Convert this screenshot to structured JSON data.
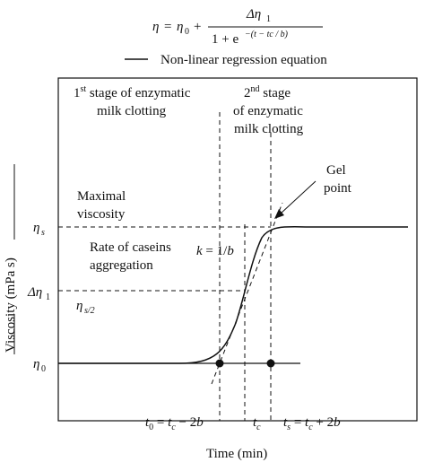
{
  "equation": {
    "lhs": "η",
    "eq": "=",
    "eta0_sym": "η",
    "eta0_sub": "0",
    "plus": "+",
    "numerator": "Δη",
    "numerator_sub": "1",
    "denominator": "1 + e",
    "exponent": "−(t − tc / b)"
  },
  "legend": {
    "label": "Non-linear regression equation"
  },
  "stage1": {
    "line1_num": "1",
    "line1_sup": "st",
    "line1_rest": " stage of enzymatic",
    "line2": "milk clotting"
  },
  "stage2": {
    "line1_num": "2",
    "line1_sup": "nd",
    "line1_rest": " stage",
    "line2": "of enzymatic",
    "line3": "milk clotting"
  },
  "gel_point": {
    "line1": "Gel",
    "line2": "point"
  },
  "maximal_viscosity": {
    "line1": "Maximal",
    "line2": "viscosity"
  },
  "rate": {
    "line1": "Rate of caseins",
    "line2": "aggregation"
  },
  "slope": {
    "k": "k",
    "rest": " = 1/",
    "b": "b"
  },
  "y_axis": {
    "label": "Viscosity (mPa s)",
    "eta_s": "η",
    "eta_s_sub": "s",
    "delta_eta1": "Δη",
    "delta_eta1_sub": "1",
    "eta_s2": "η",
    "eta_s2_sub": "s/2",
    "eta0": "η",
    "eta0_sub": "0"
  },
  "x_axis": {
    "label": "Time (min)",
    "t0": "t",
    "t0_sub": "0",
    "t0_eq": " = ",
    "t0_tc": "t",
    "t0_tc_sub": "c",
    "t0_tail": " − 2",
    "t0_b": "b",
    "tc": "t",
    "tc_sub": "c",
    "ts": "t",
    "ts_sub": "s",
    "ts_eq": " = ",
    "ts_tc": "t",
    "ts_tc_sub": "c",
    "ts_tail": " + 2",
    "ts_b": "b"
  }
}
